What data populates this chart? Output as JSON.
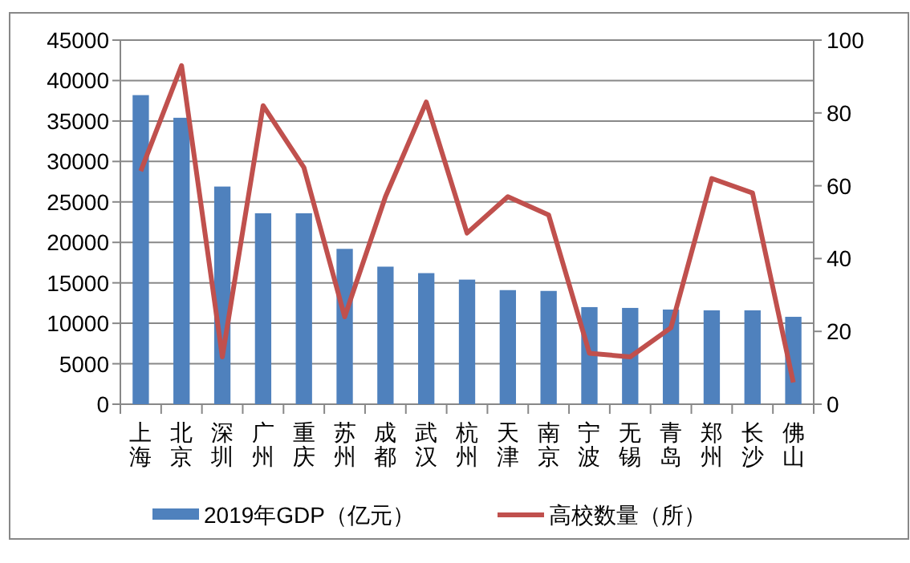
{
  "chart_data": {
    "type": "bar",
    "categories": [
      "上海",
      "北京",
      "深圳",
      "广州",
      "重庆",
      "苏州",
      "成都",
      "武汉",
      "杭州",
      "天津",
      "南京",
      "宁波",
      "无锡",
      "青岛",
      "郑州",
      "长沙",
      "佛山"
    ],
    "series": [
      {
        "name": "2019年GDP（亿元）",
        "color": "#4f81bd",
        "values": [
          38200,
          35400,
          26900,
          23600,
          23600,
          19200,
          17000,
          16200,
          15400,
          14100,
          14000,
          12000,
          11900,
          11700,
          11600,
          11600,
          10800
        ]
      },
      {
        "name": "高校数量（所）",
        "type": "line",
        "axis": "y2",
        "color": "#c0504d",
        "values": [
          64,
          93,
          13,
          82,
          65,
          24,
          57,
          83,
          47,
          57,
          52,
          14,
          13,
          21,
          62,
          58,
          6
        ]
      }
    ],
    "ylim": [
      0,
      45000
    ],
    "yticks": [
      0,
      5000,
      10000,
      15000,
      20000,
      25000,
      30000,
      35000,
      40000,
      45000
    ],
    "y2lim": [
      0,
      100
    ],
    "y2ticks": [
      0,
      20,
      40,
      60,
      80,
      100
    ],
    "grid": "y",
    "legend": "bottom",
    "marker": "none",
    "line_style": "solid"
  }
}
